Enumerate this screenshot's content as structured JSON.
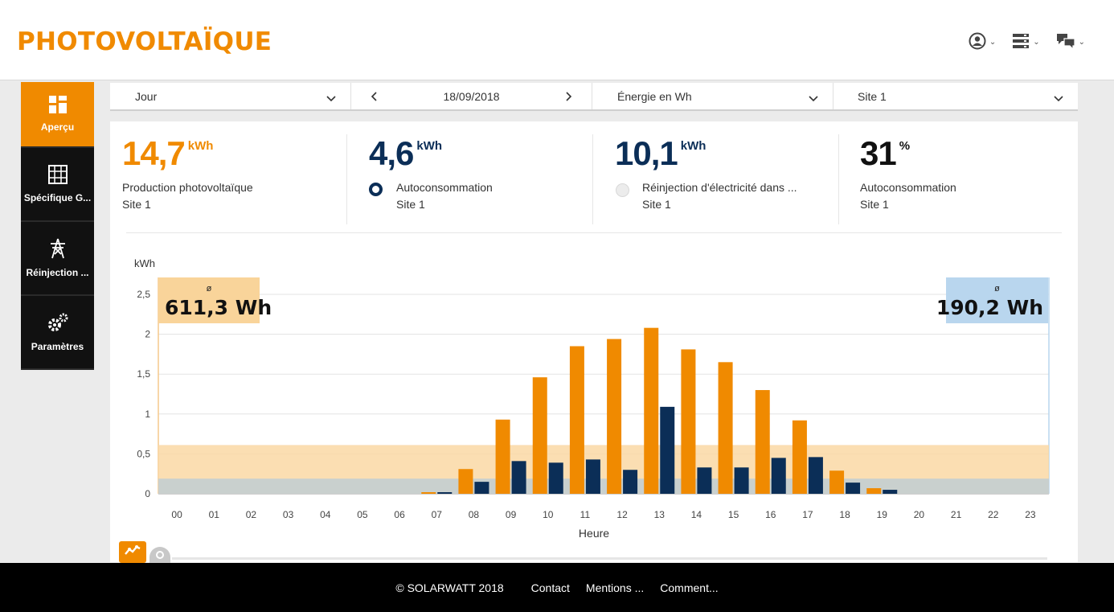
{
  "header": {
    "title": "PHOTOVOLTAÏQUE",
    "icons": [
      "user-icon",
      "server-icon",
      "chat-icon"
    ]
  },
  "sidebar": {
    "items": [
      {
        "label": "Aperçu",
        "icon": "dashboard-icon",
        "active": true
      },
      {
        "label": "Spécifique G...",
        "icon": "grid-icon",
        "active": false
      },
      {
        "label": "Réinjection ...",
        "icon": "pylon-icon",
        "active": false
      },
      {
        "label": "Paramètres",
        "icon": "gears-icon",
        "active": false
      }
    ]
  },
  "filters": {
    "period": "Jour",
    "date": "18/09/2018",
    "unit": "Énergie en Wh",
    "site": "Site 1"
  },
  "kpis": [
    {
      "value": "14,7",
      "unit": "kWh",
      "label": "Production photovoltaïque",
      "sub": "Site 1",
      "color": "#f08a00"
    },
    {
      "value": "4,6",
      "unit": "kWh",
      "label": "Autoconsommation",
      "sub": "Site 1",
      "color": "#0b2e57"
    },
    {
      "value": "10,1",
      "unit": "kWh",
      "label": "Réinjection d'électricité dans ...",
      "sub": "Site 1",
      "color": "#0b2e57"
    },
    {
      "value": "31",
      "unit": "%",
      "label": "Autoconsommation",
      "sub": "Site 1",
      "color": "#111111"
    }
  ],
  "chart_data": {
    "type": "bar",
    "ylabel": "kWh",
    "xlabel": "Heure",
    "ylim": [
      0,
      2.5
    ],
    "yticks": [
      "0",
      "0,5",
      "1",
      "1,5",
      "2",
      "2,5"
    ],
    "categories": [
      "00",
      "01",
      "02",
      "03",
      "04",
      "05",
      "06",
      "07",
      "08",
      "09",
      "10",
      "11",
      "12",
      "13",
      "14",
      "15",
      "16",
      "17",
      "18",
      "19",
      "20",
      "21",
      "22",
      "23"
    ],
    "series": [
      {
        "name": "Production photovoltaïque",
        "color": "#f08a00",
        "values": [
          0,
          0,
          0,
          0,
          0,
          0,
          0,
          0.02,
          0.31,
          0.93,
          1.46,
          1.85,
          1.94,
          2.08,
          1.81,
          1.65,
          1.3,
          0.92,
          0.29,
          0.07,
          0,
          0,
          0,
          0
        ]
      },
      {
        "name": "Autoconsommation",
        "color": "#0b2e57",
        "values": [
          0,
          0,
          0,
          0,
          0,
          0,
          0,
          0.02,
          0.15,
          0.41,
          0.39,
          0.43,
          0.3,
          1.09,
          0.33,
          0.33,
          0.45,
          0.46,
          0.14,
          0.05,
          0,
          0,
          0,
          0
        ]
      }
    ],
    "averages": [
      {
        "symbol": "ø",
        "label": "611,3 Wh",
        "value": 0.611,
        "color": "#f9d49a"
      },
      {
        "symbol": "ø",
        "label": "190,2 Wh",
        "value": 0.19,
        "color": "#b9d6ee"
      }
    ],
    "grid": true
  },
  "footer": {
    "copyright": "© SOLARWATT 2018",
    "links": [
      "Contact",
      "Mentions ...",
      "Comment..."
    ]
  }
}
